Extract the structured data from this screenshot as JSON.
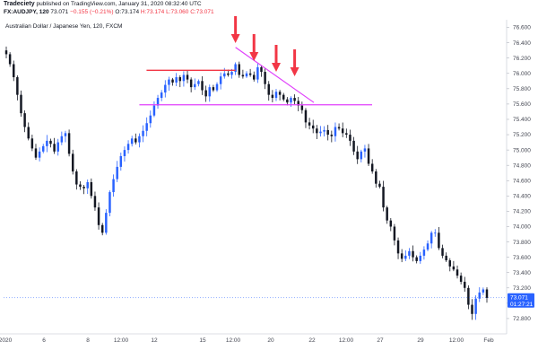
{
  "header": {
    "brand": "Tradeciety",
    "published": "published on TradingView.com, January 31, 2020 08:32:40 UTC",
    "symbol": "FX:AUDJPY, 120",
    "ohlc_prefix": "73.071",
    "change": "−0.155 (−0.21%)",
    "o": "O:73.174",
    "h": "H:73.174",
    "l": "L:73.060",
    "c": "C:73.071"
  },
  "chart_title": "Australian Dollar / Japanese Yen, 120, FXCM",
  "colors": {
    "up": "#2962ff",
    "down": "#131722",
    "resistance": "#f23645",
    "support": "#e040fb",
    "trendline": "#e040fb",
    "arrow": "#f23645",
    "price_badge": "#2962ff"
  },
  "price_badge": {
    "price": "73.071",
    "countdown": "01:27:21"
  },
  "chart_data": {
    "type": "candlestick",
    "ylim": [
      72.6,
      76.7
    ],
    "y_ticks": [
      "76.600",
      "76.400",
      "76.200",
      "76.000",
      "75.800",
      "75.600",
      "75.400",
      "75.200",
      "75.000",
      "74.800",
      "74.600",
      "74.400",
      "74.200",
      "74.000",
      "73.800",
      "73.600",
      "73.400",
      "73.200",
      "73.000",
      "72.800"
    ],
    "x_ticks": [
      "2020",
      "6",
      "8",
      "12:00",
      "12",
      "15",
      "12:00",
      "20",
      "22",
      "12:00",
      "27",
      "29",
      "12:00",
      "Feb"
    ],
    "close_series": [
      76.25,
      76.12,
      75.95,
      75.72,
      75.48,
      75.3,
      75.15,
      75.02,
      74.9,
      74.98,
      75.05,
      75.12,
      75.08,
      74.98,
      75.1,
      75.18,
      75.22,
      74.95,
      74.72,
      74.55,
      74.52,
      74.5,
      74.58,
      74.4,
      74.25,
      74.02,
      73.92,
      74.18,
      74.45,
      74.62,
      74.78,
      74.92,
      75.0,
      75.08,
      75.15,
      75.1,
      75.18,
      75.25,
      75.35,
      75.45,
      75.58,
      75.68,
      75.75,
      75.85,
      75.92,
      75.88,
      75.95,
      75.9,
      75.98,
      75.92,
      75.82,
      75.86,
      75.9,
      75.78,
      75.7,
      75.82,
      75.78,
      75.86,
      75.96,
      76.0,
      75.98,
      76.02,
      76.12,
      75.98,
      75.96,
      76.0,
      75.98,
      75.92,
      76.08,
      76.02,
      75.86,
      75.72,
      75.68,
      75.76,
      75.72,
      75.66,
      75.62,
      75.68,
      75.64,
      75.58,
      75.52,
      75.36,
      75.32,
      75.28,
      75.22,
      75.24,
      75.26,
      75.2,
      75.18,
      75.3,
      75.28,
      75.22,
      75.2,
      75.12,
      74.98,
      74.88,
      74.98,
      75.02,
      74.82,
      74.72,
      74.56,
      74.52,
      74.25,
      74.08,
      74.0,
      73.82,
      73.65,
      73.58,
      73.62,
      73.68,
      73.6,
      73.55,
      73.62,
      73.7,
      73.78,
      73.92,
      73.92,
      73.72,
      73.62,
      73.56,
      73.48,
      73.44,
      73.36,
      73.28,
      73.2,
      72.98,
      72.86,
      73.06,
      73.14,
      73.18,
      73.07
    ],
    "annotations": {
      "resistance": {
        "from_index": 36,
        "to_index": 62,
        "price": 76.04
      },
      "support": {
        "from_index": 36,
        "to_index": 103,
        "price": 75.59
      },
      "descending_trendline": {
        "from": [
          62,
          76.34
        ],
        "to": [
          84,
          75.66
        ]
      },
      "arrows_at_index": [
        62,
        67,
        73,
        78
      ]
    }
  }
}
